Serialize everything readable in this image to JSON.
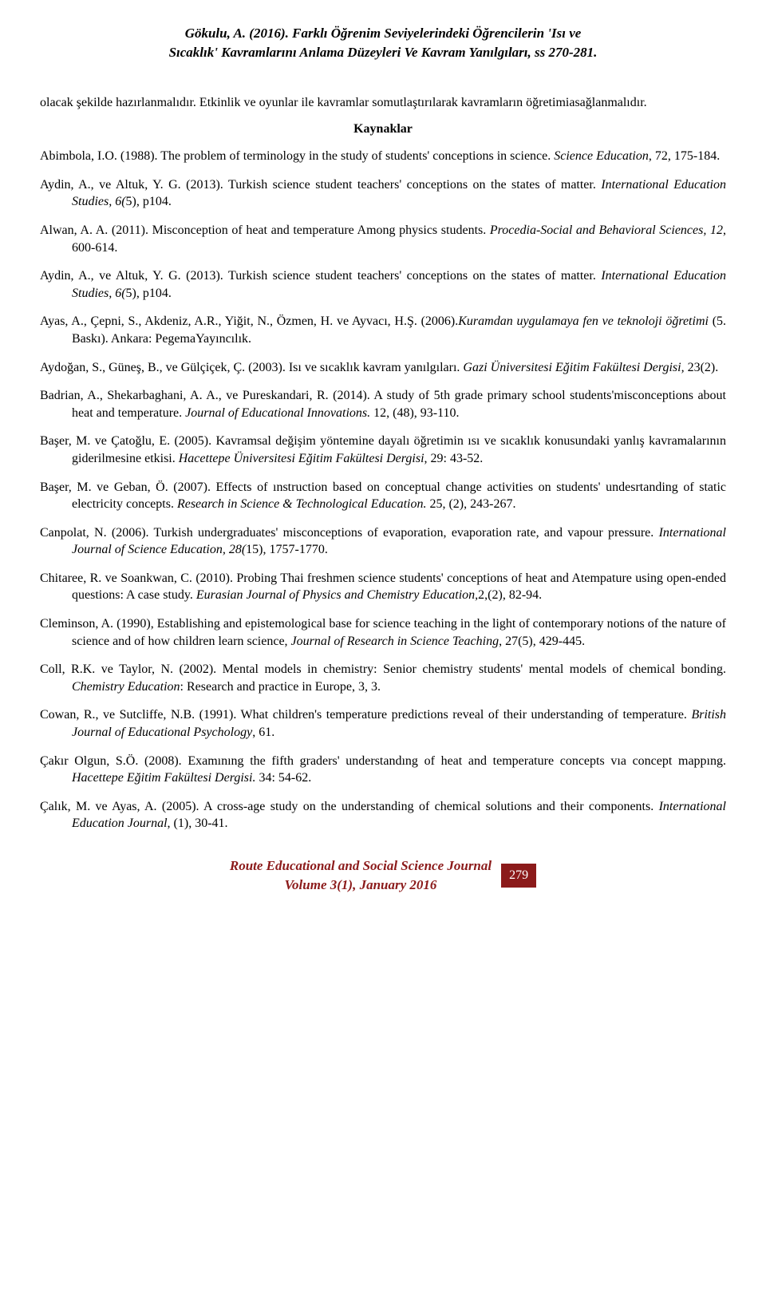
{
  "header": {
    "line1": "Gökulu, A. (2016). Farklı Öğrenim Seviyelerindeki Öğrencilerin 'Isı ve",
    "line2": "Sıcaklık' Kavramlarını Anlama Düzeyleri Ve Kavram Yanılgıları, ss 270-281."
  },
  "bodyParagraph": "olacak şekilde hazırlanmalıdır. Etkinlik ve oyunlar ile kavramlar somutlaştırılarak kavramların öğretimiasağlanmalıdır.",
  "sectionTitle": "Kaynaklar",
  "references": [
    {
      "plain1": "Abimbola, I.O. (1988). The problem of terminology in the study of students' conceptions in science. ",
      "italic": "Science Education",
      "plain2": ", 72, 175-184."
    },
    {
      "plain1": "Aydin, A., ve Altuk, Y. G. (2013). Turkish science student teachers' conceptions on the states of matter. ",
      "italic": "International Education Studies, 6(",
      "plain2": "5), p104."
    },
    {
      "plain1": "Alwan, A. A. (2011). Misconception of heat and temperature Among physics students. ",
      "italic": "Procedia-Social and Behavioral Sciences, 12",
      "plain2": ", 600-614."
    },
    {
      "plain1": "Aydin, A., ve Altuk, Y. G. (2013). Turkish science student teachers' conceptions on the states of matter. ",
      "italic": "International Education Studies, 6(",
      "plain2": "5), p104."
    },
    {
      "plain1": "Ayas, A., Çepni, S., Akdeniz, A.R., Yiğit, N., Özmen, H. ve Ayvacı, H.Ş. (2006).",
      "italic": "Kuramdan uygulamaya fen ve teknoloji öğretimi ",
      "plain2": "(5. Baskı). Ankara: PegemaYayıncılık."
    },
    {
      "plain1": "Aydoğan, S., Güneş, B., ve Gülçiçek, Ç. (2003). Isı ve sıcaklık kavram yanılgıları. ",
      "italic": "Gazi Üniversitesi Eğitim Fakültesi Dergisi, ",
      "plain2": "23(2)."
    },
    {
      "plain1": "Badrian, A., Shekarbaghani, A. A., ve Pureskandari, R. (2014). A study of 5th grade primary school students'misconceptions about heat and temperature. ",
      "italic": "Journal of Educational Innovations. ",
      "plain2": "12, (48), 93-110."
    },
    {
      "plain1": "Başer, M. ve Çatoğlu, E. (2005). Kavramsal değişim yöntemine dayalı öğretimin ısı ve sıcaklık konusundaki yanlış kavramalarının giderilmesine etkisi. ",
      "italic": "Hacettepe Üniversitesi Eğitim Fakültesi Dergisi",
      "plain2": ", 29: 43-52."
    },
    {
      "plain1": "Başer, M. ve Geban, Ö. (2007). Effects of ınstruction based on conceptual change activities on students' undesrtanding of static electricity concepts. ",
      "italic": "Research in Science & Technological Education. ",
      "plain2": "25, (2), 243-267."
    },
    {
      "plain1": "Canpolat, N. (2006). Turkish undergraduates' misconceptions of evaporation, evaporation rate, and vapour pressure. ",
      "italic": "International Journal of Science Education, 28(",
      "plain2": "15), 1757-1770."
    },
    {
      "plain1": "Chitaree, R. ve Soankwan, C. (2010). Probing Thai freshmen science students' conceptions of heat and Atempature using open-ended questions: A case study. ",
      "italic": "Eurasian Journal of Physics and Chemistry Education,",
      "plain2": "2,(2), 82-94."
    },
    {
      "plain1": "Cleminson, A. (1990), Establishing and epistemological base for science teaching in the light of contemporary notions of the nature of science and of how children learn science, ",
      "italic": "Journal of Research in Science Teaching",
      "plain2": ", 27(5), 429-445."
    },
    {
      "plain1": "Coll, R.K. ve Taylor, N. (2002). Mental models in chemistry: Senior chemistry students' mental models of chemical bonding. ",
      "italic": "Chemistry Education",
      "plain2": ": Research and practice in Europe, 3, 3."
    },
    {
      "plain1": "Cowan, R., ve Sutcliffe, N.B. (1991). What children's temperature predictions reveal of their understanding of temperature. ",
      "italic": "British Journal of Educational Psychology",
      "plain2": ", 61."
    },
    {
      "plain1": "Çakır Olgun, S.Ö. (2008). Examınıng the fifth graders' understandıng of heat and temperature concepts vıa concept mappıng. ",
      "italic": "Hacettepe Eğitim Fakültesi Dergisi. ",
      "plain2": "34: 54-62."
    },
    {
      "plain1": "Çalık, M. ve Ayas, A. (2005). A cross-age study on the understanding of chemical solutions and their components. ",
      "italic": "International Education Journal",
      "plain2": ", (1), 30-41."
    }
  ],
  "footer": {
    "journalName": "Route Educational and Social Science Journal",
    "volumeInfo": "Volume 3(1), January 2016",
    "pageNumber": "279"
  },
  "colors": {
    "headerRed": "#8b1a1a",
    "background": "#ffffff",
    "text": "#000000"
  }
}
